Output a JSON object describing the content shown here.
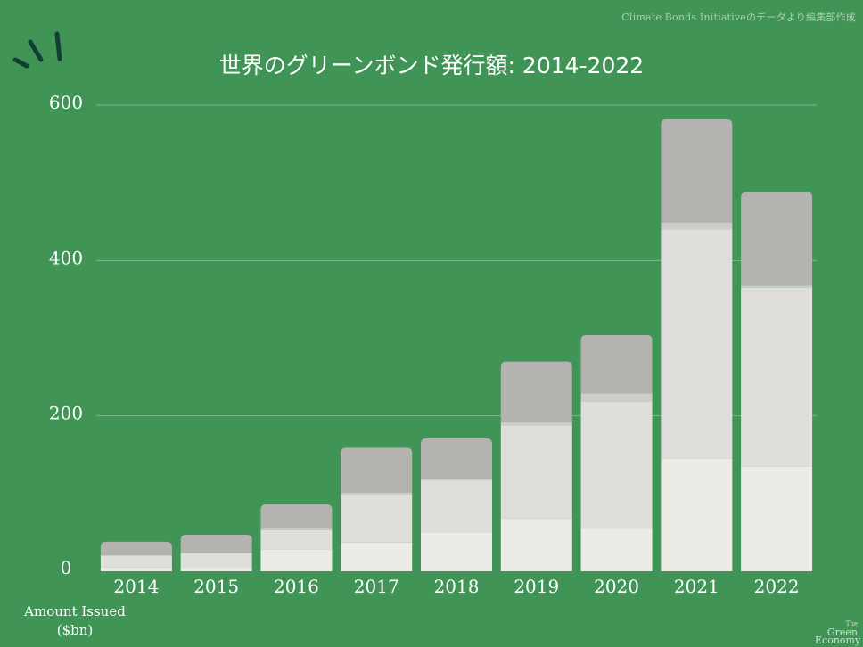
{
  "source_note": "Climate Bonds Initiativeのデータより編集部作成",
  "logo": {
    "line1": "The",
    "line2": "Green",
    "line3": "Economy"
  },
  "colors": {
    "background": "#409455",
    "segment_bottom": "#edebe6",
    "segment_middle": "#dfdeda",
    "segment_thin": "#cfcdc9",
    "segment_top": "#b4b3af",
    "gridline": "#7fb68c",
    "decoration": "#123e36"
  },
  "chart_data": {
    "type": "bar",
    "stacked": true,
    "title": "世界のグリーンボンド発行額: 2014-2022",
    "ylabel": "Amount Issued ($bn)",
    "ylabel_lines": [
      "Amount Issued",
      "($bn)"
    ],
    "xlabel": "",
    "ylim": [
      0,
      600
    ],
    "yticks": [
      "0",
      "200",
      "400",
      "600"
    ],
    "grid": true,
    "categories": [
      "2014",
      "2015",
      "2016",
      "2017",
      "2018",
      "2019",
      "2020",
      "2021",
      "2022"
    ],
    "series": [
      {
        "values": [
          5,
          4,
          28,
          37,
          50,
          68,
          55,
          145,
          135
        ]
      },
      {
        "values": [
          15,
          19,
          25,
          61,
          67,
          120,
          163,
          295,
          230
        ]
      },
      {
        "values": [
          1,
          1,
          2,
          3,
          2,
          4,
          11,
          9,
          3
        ]
      },
      {
        "values": [
          17,
          23,
          31,
          58,
          52,
          78,
          75,
          133,
          120
        ]
      }
    ]
  }
}
